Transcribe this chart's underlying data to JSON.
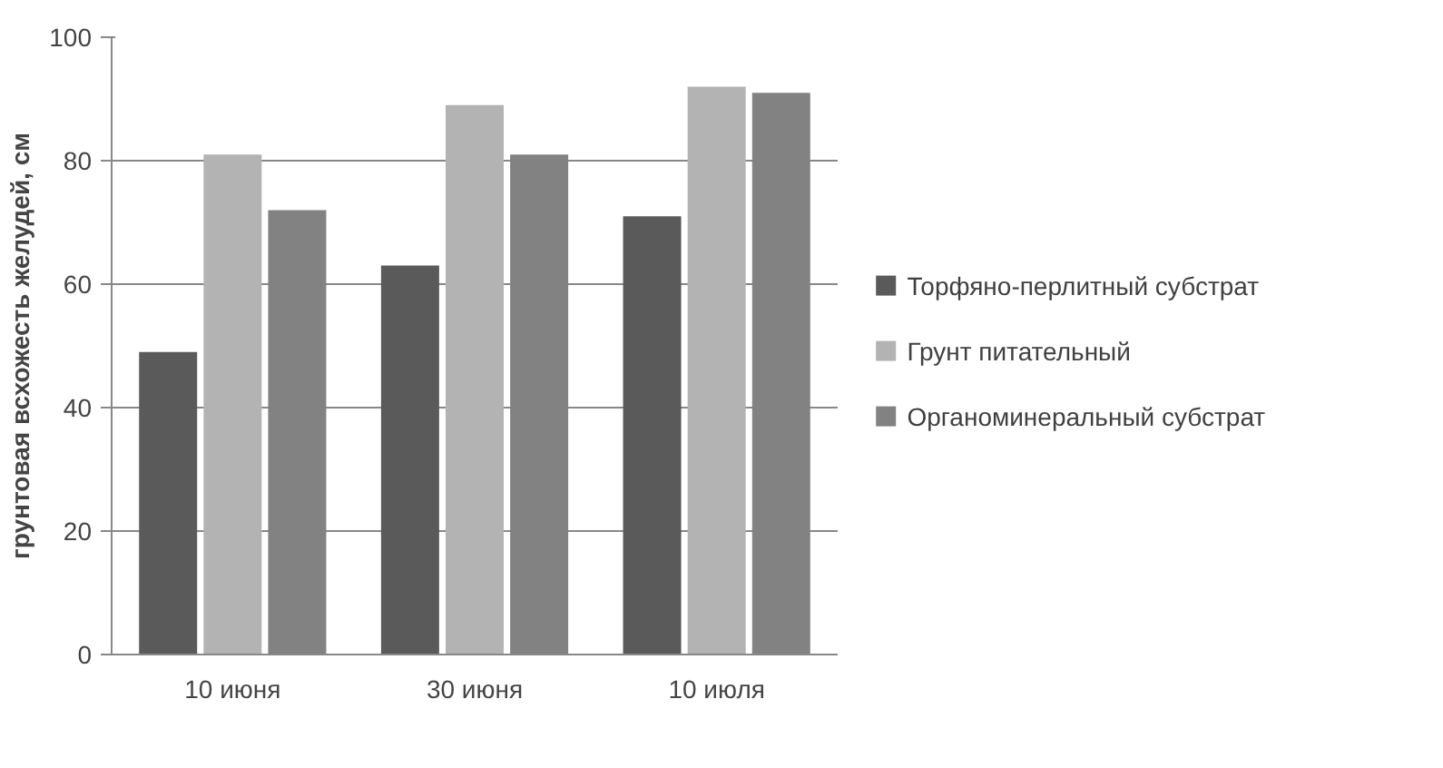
{
  "chart_data": {
    "type": "bar",
    "ylabel": "грунтовая всхожесть желудей, см",
    "categories": [
      "10 июня",
      "30 июня",
      "10 июля"
    ],
    "series": [
      {
        "name": "Торфяно-перлитный субстрат",
        "color": "#5a5a5a",
        "values": [
          49,
          63,
          71
        ]
      },
      {
        "name": "Грунт питательный",
        "color": "#b3b3b3",
        "values": [
          81,
          89,
          92
        ]
      },
      {
        "name": "Органоминеральный субстрат",
        "color": "#828282",
        "values": [
          72,
          81,
          91
        ]
      }
    ],
    "ylim": [
      0,
      100
    ],
    "yticks": [
      0,
      20,
      40,
      60,
      80,
      100
    ],
    "grid": "y",
    "legend": "right"
  }
}
